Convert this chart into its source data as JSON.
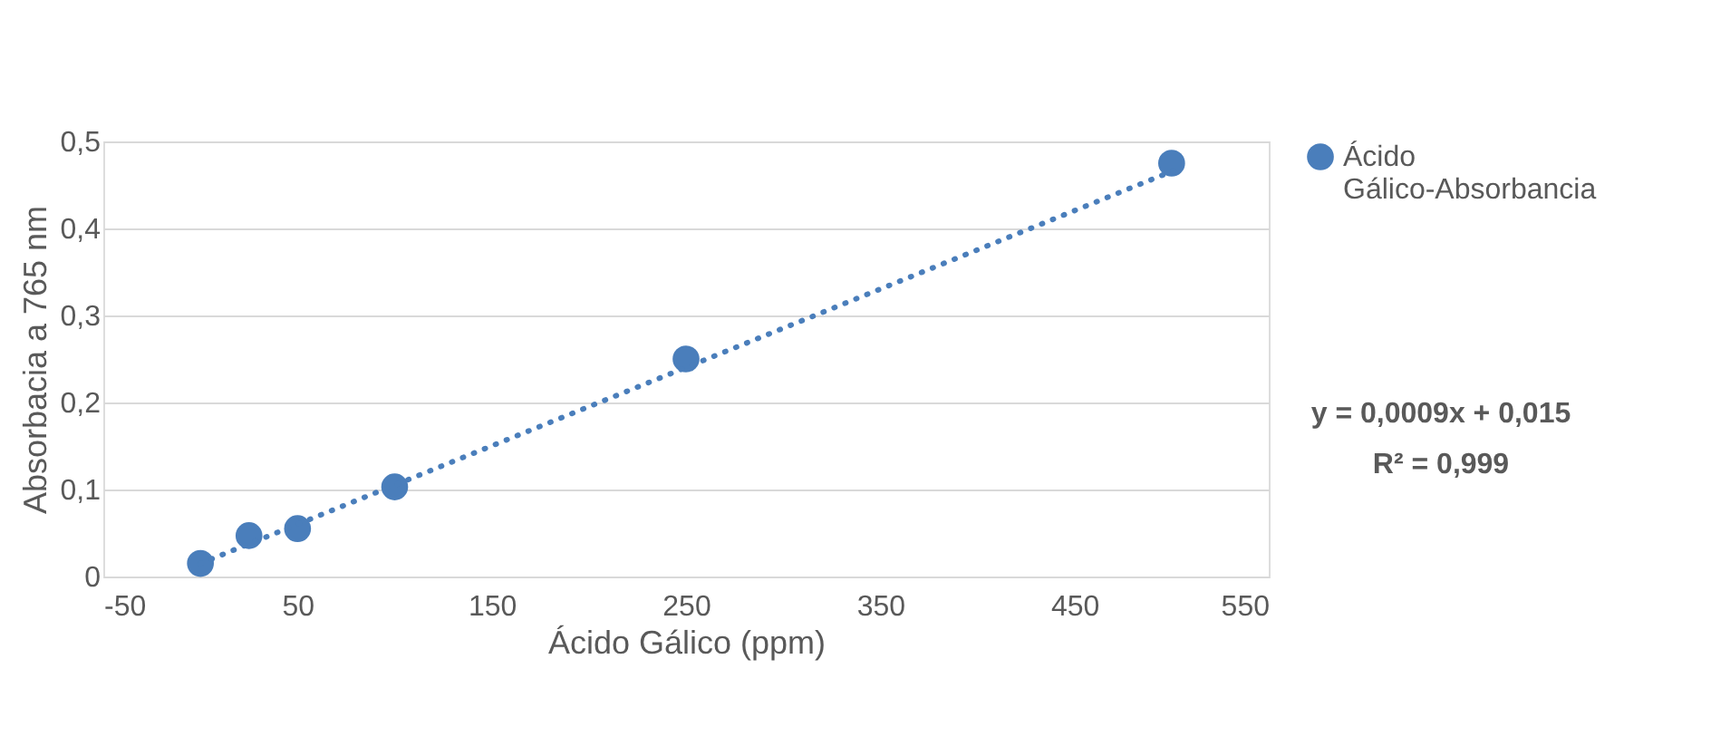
{
  "chart_data": {
    "type": "scatter",
    "xlabel": "Ácido Gálico (ppm)",
    "ylabel": "Absorbacia a 765 nm",
    "series": [
      {
        "name": "Ácido Gálico-Absorbancia",
        "color": "#4a7ebb",
        "marker": "circle",
        "x": [
          0,
          25,
          50,
          100,
          250,
          500
        ],
        "values": [
          0.015,
          0.047,
          0.055,
          0.103,
          0.25,
          0.475
        ]
      },
      {
        "type": "line",
        "color": "#4a7ebb",
        "line_style": "dotted",
        "x": [
          0,
          505
        ],
        "values": [
          0.015,
          0.47
        ]
      }
    ],
    "xlim": [
      -50,
      550
    ],
    "xticks": [
      -50,
      50,
      150,
      250,
      350,
      450,
      550
    ],
    "ylim": [
      0,
      0.5
    ],
    "yticks": [
      {
        "value": 0,
        "label": "0"
      },
      {
        "value": 0.1,
        "label": "0,1"
      },
      {
        "value": 0.2,
        "label": "0,2"
      },
      {
        "value": 0.3,
        "label": "0,3"
      },
      {
        "value": 0.4,
        "label": "0,4"
      },
      {
        "value": 0.5,
        "label": "0,5"
      }
    ],
    "grid": "y",
    "legend": "top right",
    "annotations": [
      "y = 0,0009x + 0,015",
      "R² = 0,999"
    ]
  }
}
